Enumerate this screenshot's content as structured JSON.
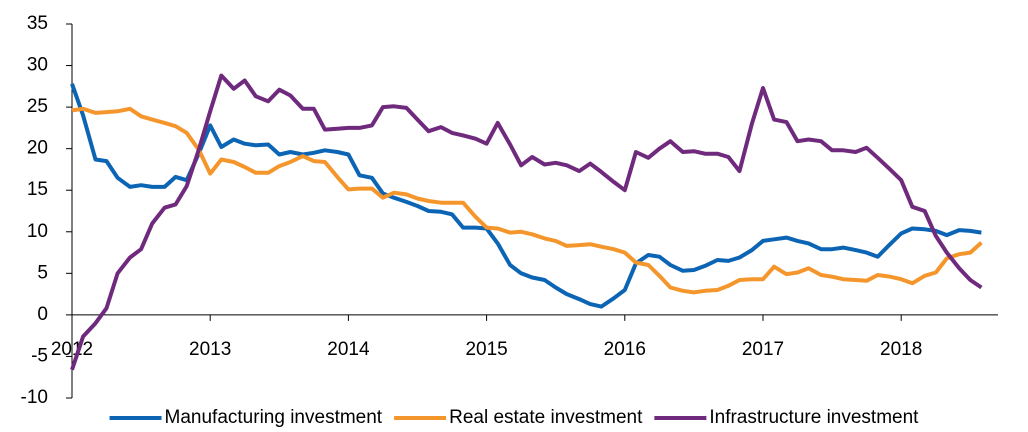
{
  "chart_data": {
    "type": "line",
    "x": [
      2012,
      2012.08,
      2012.17,
      2012.25,
      2012.33,
      2012.42,
      2012.5,
      2012.58,
      2012.67,
      2012.75,
      2012.83,
      2012.92,
      2013,
      2013.08,
      2013.17,
      2013.25,
      2013.33,
      2013.42,
      2013.5,
      2013.58,
      2013.67,
      2013.75,
      2013.83,
      2013.92,
      2014,
      2014.08,
      2014.17,
      2014.25,
      2014.33,
      2014.42,
      2014.5,
      2014.58,
      2014.67,
      2014.75,
      2014.83,
      2014.92,
      2015,
      2015.08,
      2015.17,
      2015.25,
      2015.33,
      2015.42,
      2015.5,
      2015.58,
      2015.67,
      2015.75,
      2015.83,
      2015.92,
      2016,
      2016.08,
      2016.17,
      2016.25,
      2016.33,
      2016.42,
      2016.5,
      2016.58,
      2016.67,
      2016.75,
      2016.83,
      2016.92,
      2017,
      2017.08,
      2017.17,
      2017.25,
      2017.33,
      2017.42,
      2017.5,
      2017.58,
      2017.67,
      2017.75,
      2017.83,
      2017.92,
      2018,
      2018.08,
      2018.17,
      2018.25,
      2018.33,
      2018.42,
      2018.5,
      2018.58
    ],
    "series": [
      {
        "name": "Manufacturing investment",
        "color": "#0b64b4",
        "values": [
          27.8,
          24,
          18.7,
          18.5,
          16.5,
          15.4,
          15.6,
          15.4,
          15.4,
          16.6,
          16.2,
          19.5,
          22.8,
          20.2,
          21.1,
          20.6,
          20.4,
          20.5,
          19.3,
          19.6,
          19.3,
          19.5,
          19.8,
          19.6,
          19.3,
          16.8,
          16.5,
          14.6,
          14.1,
          13.6,
          13.1,
          12.5,
          12.4,
          12.1,
          10.5,
          10.5,
          10.4,
          8.6,
          6.0,
          5.0,
          4.5,
          4.2,
          3.3,
          2.5,
          1.9,
          1.3,
          1.0,
          2.0,
          3.0,
          6.2,
          7.2,
          7.0,
          6.0,
          5.3,
          5.4,
          5.9,
          6.6,
          6.5,
          6.9,
          7.8,
          8.9,
          9.1,
          9.3,
          8.9,
          8.6,
          7.9,
          7.9,
          8.1,
          7.8,
          7.5,
          7.0,
          8.5,
          9.8,
          10.4,
          10.3,
          10.1,
          9.6,
          10.2,
          10.1,
          9.9
        ]
      },
      {
        "name": "Real estate investment",
        "color": "#f5962d",
        "values": [
          24.6,
          24.8,
          24.3,
          24.4,
          24.5,
          24.8,
          23.9,
          23.5,
          23.1,
          22.7,
          21.9,
          19.8,
          17.0,
          18.7,
          18.4,
          17.8,
          17.1,
          17.1,
          17.9,
          18.4,
          19.1,
          18.5,
          18.4,
          16.6,
          15.1,
          15.2,
          15.2,
          14.1,
          14.7,
          14.5,
          14.0,
          13.7,
          13.5,
          13.5,
          13.5,
          11.8,
          10.5,
          10.4,
          9.9,
          10.0,
          9.7,
          9.2,
          8.9,
          8.3,
          8.4,
          8.5,
          8.2,
          7.9,
          7.5,
          6.3,
          6.0,
          4.7,
          3.3,
          2.9,
          2.7,
          2.9,
          3.0,
          3.5,
          4.2,
          4.3,
          4.3,
          5.8,
          4.9,
          5.1,
          5.6,
          4.8,
          4.6,
          4.3,
          4.2,
          4.1,
          4.8,
          4.6,
          4.3,
          3.8,
          4.7,
          5.1,
          6.8,
          7.3,
          7.5,
          8.7
        ]
      },
      {
        "name": "Infrastructure investment",
        "color": "#6f2a7e",
        "values": [
          -6.6,
          -2.6,
          -1.0,
          0.8,
          5.0,
          6.9,
          7.9,
          11.0,
          12.9,
          13.3,
          15.5,
          20.0,
          24.5,
          28.8,
          27.2,
          28.2,
          26.3,
          25.7,
          27.1,
          26.4,
          24.8,
          24.8,
          22.3,
          22.4,
          22.5,
          22.5,
          22.8,
          25.0,
          25.1,
          24.9,
          23.5,
          22.1,
          22.6,
          21.9,
          21.6,
          21.2,
          20.6,
          23.1,
          20.5,
          18.0,
          19.0,
          18.1,
          18.3,
          18.0,
          17.3,
          18.2,
          17.2,
          16.0,
          15.0,
          19.6,
          18.9,
          20.0,
          20.9,
          19.6,
          19.7,
          19.4,
          19.4,
          19.0,
          17.3,
          23.0,
          27.3,
          23.5,
          23.2,
          20.9,
          21.1,
          20.9,
          19.8,
          19.8,
          19.6,
          20.1,
          18.9,
          17.5,
          16.2,
          13.0,
          12.5,
          9.5,
          7.5,
          5.6,
          4.2,
          3.3
        ]
      }
    ],
    "xlim": [
      2012,
      2018.7
    ],
    "xticks": [
      2012,
      2013,
      2014,
      2015,
      2016,
      2017,
      2018
    ],
    "ylim": [
      -10,
      35
    ],
    "yticks": [
      -10,
      -5,
      0,
      5,
      10,
      15,
      20,
      25,
      30,
      35
    ],
    "legend": "bottom"
  }
}
